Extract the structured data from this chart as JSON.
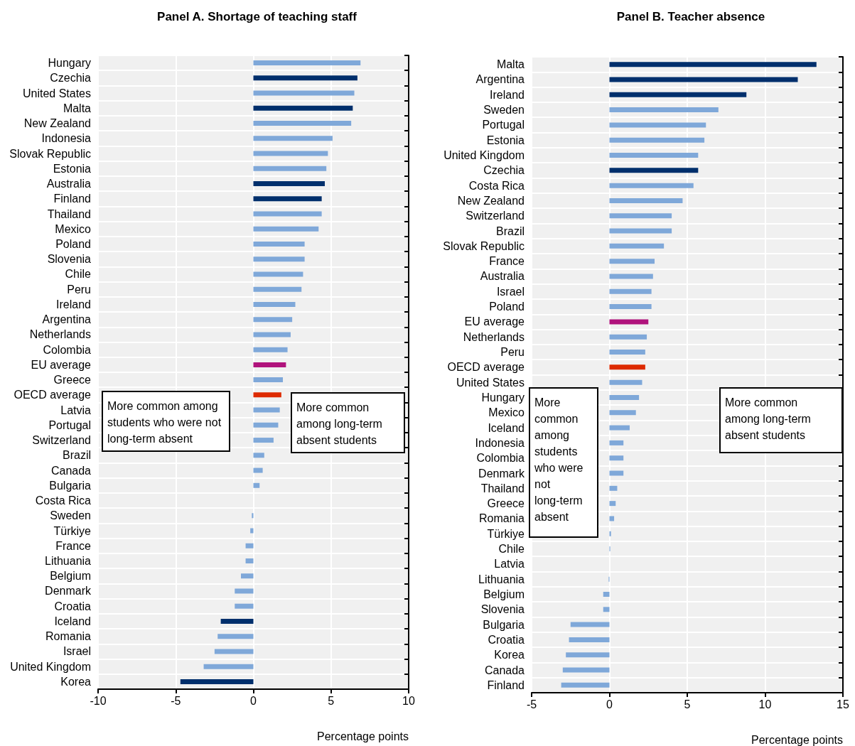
{
  "chart_data": [
    {
      "type": "bar",
      "orientation": "horizontal",
      "title": "Panel A. Shortage of teaching staff",
      "xlabel": "Percentage points",
      "categories": [
        "Hungary",
        "Czechia",
        "United States",
        "Malta",
        "New Zealand",
        "Indonesia",
        "Slovak Republic",
        "Estonia",
        "Australia",
        "Finland",
        "Thailand",
        "Mexico",
        "Poland",
        "Slovenia",
        "Chile",
        "Peru",
        "Ireland",
        "Argentina",
        "Netherlands",
        "Colombia",
        "EU average",
        "Greece",
        "OECD average",
        "Latvia",
        "Portugal",
        "Switzerland",
        "Brazil",
        "Canada",
        "Bulgaria",
        "Costa Rica",
        "Sweden",
        "Türkiye",
        "France",
        "Lithuania",
        "Belgium",
        "Denmark",
        "Croatia",
        "Iceland",
        "Romania",
        "Israel",
        "United Kingdom",
        "Korea"
      ],
      "values": [
        6.9,
        6.7,
        6.5,
        6.4,
        6.3,
        5.1,
        4.8,
        4.7,
        4.6,
        4.4,
        4.4,
        4.2,
        3.3,
        3.3,
        3.2,
        3.1,
        2.7,
        2.5,
        2.4,
        2.2,
        2.1,
        1.9,
        1.8,
        1.7,
        1.6,
        1.3,
        0.7,
        0.6,
        0.4,
        0.0,
        -0.1,
        -0.2,
        -0.5,
        -0.5,
        -0.8,
        -1.2,
        -1.2,
        -2.1,
        -2.3,
        -2.5,
        -3.2,
        -4.7
      ],
      "colors": [
        "#7fa8d9",
        "#002f6c",
        "#7fa8d9",
        "#002f6c",
        "#7fa8d9",
        "#7fa8d9",
        "#7fa8d9",
        "#7fa8d9",
        "#002f6c",
        "#002f6c",
        "#7fa8d9",
        "#7fa8d9",
        "#7fa8d9",
        "#7fa8d9",
        "#7fa8d9",
        "#7fa8d9",
        "#7fa8d9",
        "#7fa8d9",
        "#7fa8d9",
        "#7fa8d9",
        "#b0137c",
        "#7fa8d9",
        "#dd2a00",
        "#7fa8d9",
        "#7fa8d9",
        "#7fa8d9",
        "#7fa8d9",
        "#7fa8d9",
        "#7fa8d9",
        "#7fa8d9",
        "#7fa8d9",
        "#7fa8d9",
        "#7fa8d9",
        "#7fa8d9",
        "#7fa8d9",
        "#7fa8d9",
        "#7fa8d9",
        "#002f6c",
        "#7fa8d9",
        "#7fa8d9",
        "#7fa8d9",
        "#002f6c"
      ],
      "xlim": [
        -10,
        10
      ],
      "xticks": [
        -10,
        -5,
        0,
        5,
        10
      ],
      "grid": true,
      "annotations": [
        "More common among students who were not long-term absent",
        "More common among long-term absent students"
      ]
    },
    {
      "type": "bar",
      "orientation": "horizontal",
      "title": "Panel B. Teacher absence",
      "xlabel": "Percentage points",
      "categories": [
        "Malta",
        "Argentina",
        "Ireland",
        "Sweden",
        "Portugal",
        "Estonia",
        "United Kingdom",
        "Czechia",
        "Costa Rica",
        "New Zealand",
        "Switzerland",
        "Brazil",
        "Slovak Republic",
        "France",
        "Australia",
        "Israel",
        "Poland",
        "EU average",
        "Netherlands",
        "Peru",
        "OECD average",
        "United States",
        "Hungary",
        "Mexico",
        "Iceland",
        "Indonesia",
        "Colombia",
        "Denmark",
        "Thailand",
        "Greece",
        "Romania",
        "Türkiye",
        "Chile",
        "Latvia",
        "Lithuania",
        "Belgium",
        "Slovenia",
        "Bulgaria",
        "Croatia",
        "Korea",
        "Canada",
        "Finland"
      ],
      "values": [
        13.3,
        12.1,
        8.8,
        7.0,
        6.2,
        6.1,
        5.7,
        5.7,
        5.4,
        4.7,
        4.0,
        4.0,
        3.5,
        2.9,
        2.8,
        2.7,
        2.7,
        2.5,
        2.4,
        2.3,
        2.3,
        2.1,
        1.9,
        1.7,
        1.3,
        0.9,
        0.9,
        0.9,
        0.5,
        0.4,
        0.3,
        0.1,
        0.05,
        0.0,
        -0.05,
        -0.4,
        -0.4,
        -2.5,
        -2.6,
        -2.8,
        -3.0,
        -3.1
      ],
      "colors": [
        "#002f6c",
        "#002f6c",
        "#002f6c",
        "#7fa8d9",
        "#7fa8d9",
        "#7fa8d9",
        "#7fa8d9",
        "#002f6c",
        "#7fa8d9",
        "#7fa8d9",
        "#7fa8d9",
        "#7fa8d9",
        "#7fa8d9",
        "#7fa8d9",
        "#7fa8d9",
        "#7fa8d9",
        "#7fa8d9",
        "#b0137c",
        "#7fa8d9",
        "#7fa8d9",
        "#dd2a00",
        "#7fa8d9",
        "#7fa8d9",
        "#7fa8d9",
        "#7fa8d9",
        "#7fa8d9",
        "#7fa8d9",
        "#7fa8d9",
        "#7fa8d9",
        "#7fa8d9",
        "#7fa8d9",
        "#7fa8d9",
        "#7fa8d9",
        "#7fa8d9",
        "#7fa8d9",
        "#7fa8d9",
        "#7fa8d9",
        "#7fa8d9",
        "#7fa8d9",
        "#7fa8d9",
        "#7fa8d9",
        "#7fa8d9"
      ],
      "xlim": [
        -5,
        15
      ],
      "xticks": [
        -5,
        0,
        5,
        10,
        15
      ],
      "grid": true,
      "annotations": [
        "More common among students who were not long-term absent",
        "More common among long-term absent students"
      ]
    }
  ]
}
